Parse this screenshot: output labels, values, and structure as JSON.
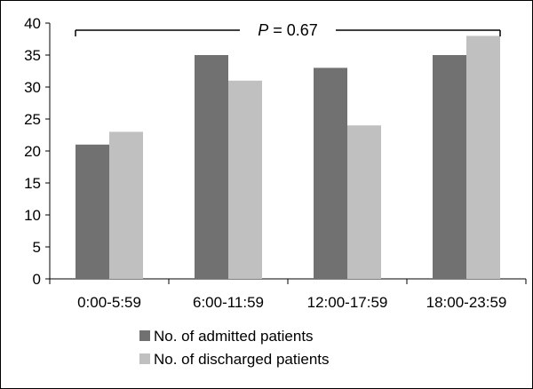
{
  "chart_data": {
    "type": "bar",
    "categories": [
      "0:00-5:59",
      "6:00-11:59",
      "12:00-17:59",
      "18:00-23:59"
    ],
    "series": [
      {
        "name": "No. of admitted patients",
        "values": [
          21,
          35,
          33,
          35
        ],
        "color": "#717171"
      },
      {
        "name": "No. of discharged patients",
        "values": [
          23,
          31,
          24,
          38
        ],
        "color": "#c0c0c0"
      }
    ],
    "ylim": [
      0,
      40
    ],
    "yticks": [
      0,
      5,
      10,
      15,
      20,
      25,
      30,
      35,
      40
    ],
    "grid": false,
    "legend_position": "bottom",
    "annotation": {
      "prefix": "P",
      "value": " = 0.67"
    }
  }
}
